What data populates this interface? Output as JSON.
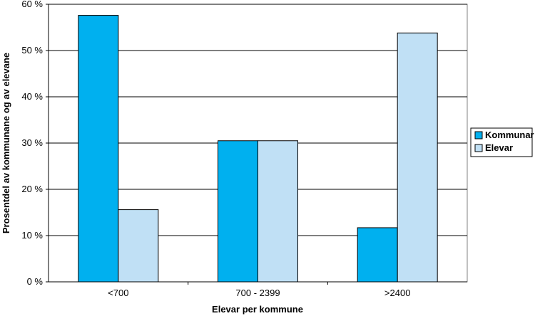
{
  "chart_data": {
    "type": "bar",
    "title": "",
    "xlabel": "Elevar per kommune",
    "ylabel": "Prosentdel av kommunane og av elevane",
    "categories": [
      "<700",
      "700 - 2399",
      ">2400"
    ],
    "series": [
      {
        "name": "Kommunar",
        "values": [
          57.6,
          30.5,
          11.7
        ],
        "color": "#00b0ef"
      },
      {
        "name": "Elevar",
        "values": [
          15.6,
          30.5,
          53.8
        ],
        "color": "#c0e0f5"
      }
    ],
    "ylim": [
      0,
      60
    ],
    "yticks": [
      0,
      10,
      20,
      30,
      40,
      50,
      60
    ],
    "ytick_labels": [
      "0 %",
      "10 %",
      "20 %",
      "30 %",
      "40 %",
      "50 %",
      "60 %"
    ],
    "grid": true,
    "legend_position": "right"
  }
}
